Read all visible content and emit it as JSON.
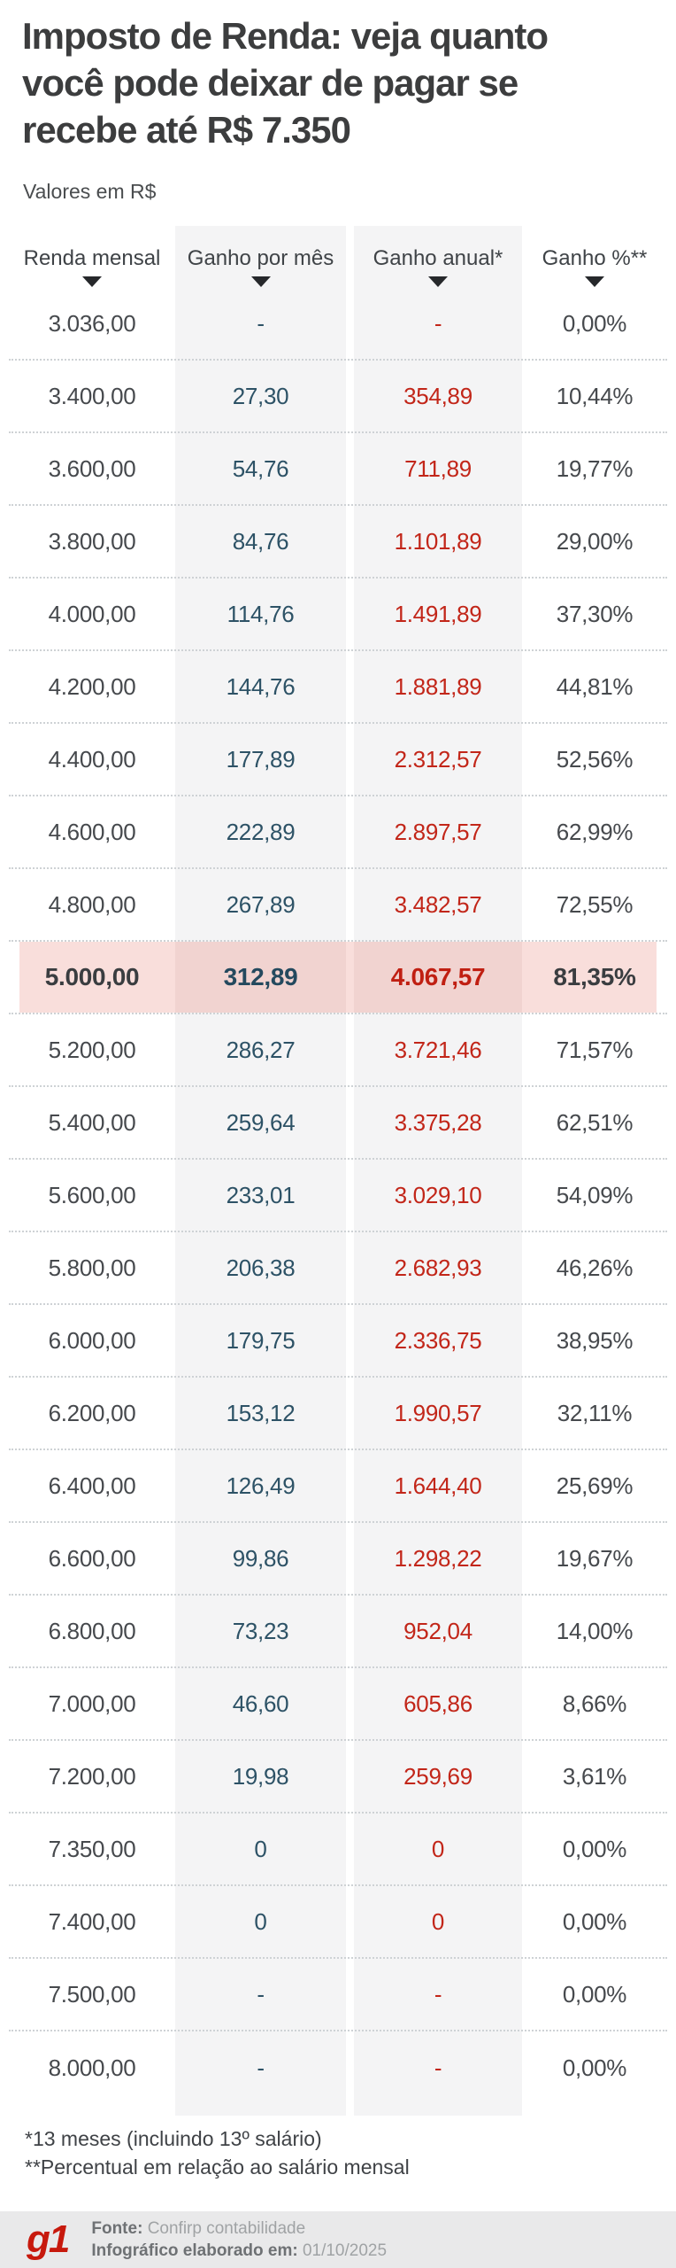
{
  "header": {
    "title_lines": [
      "Imposto de Renda: veja quanto",
      "você pode deixar de pagar se",
      "recebe até R$ 7.350"
    ],
    "subtitle": "Valores em R$"
  },
  "chart_data": {
    "type": "table",
    "title": "Imposto de Renda: veja quanto você pode deixar de pagar se recebe até R$ 7.350",
    "unit_note": "Valores em R$",
    "columns": [
      "Renda mensal",
      "Ganho por mês",
      "Ganho anual*",
      "Ganho %**"
    ],
    "rows": [
      [
        "3.036,00",
        "-",
        "-",
        "0,00%"
      ],
      [
        "3.400,00",
        "27,30",
        "354,89",
        "10,44%"
      ],
      [
        "3.600,00",
        "54,76",
        "711,89",
        "19,77%"
      ],
      [
        "3.800,00",
        "84,76",
        "1.101,89",
        "29,00%"
      ],
      [
        "4.000,00",
        "114,76",
        "1.491,89",
        "37,30%"
      ],
      [
        "4.200,00",
        "144,76",
        "1.881,89",
        "44,81%"
      ],
      [
        "4.400,00",
        "177,89",
        "2.312,57",
        "52,56%"
      ],
      [
        "4.600,00",
        "222,89",
        "2.897,57",
        "62,99%"
      ],
      [
        "4.800,00",
        "267,89",
        "3.482,57",
        "72,55%"
      ],
      [
        "5.000,00",
        "312,89",
        "4.067,57",
        "81,35%"
      ],
      [
        "5.200,00",
        "286,27",
        "3.721,46",
        "71,57%"
      ],
      [
        "5.400,00",
        "259,64",
        "3.375,28",
        "62,51%"
      ],
      [
        "5.600,00",
        "233,01",
        "3.029,10",
        "54,09%"
      ],
      [
        "5.800,00",
        "206,38",
        "2.682,93",
        "46,26%"
      ],
      [
        "6.000,00",
        "179,75",
        "2.336,75",
        "38,95%"
      ],
      [
        "6.200,00",
        "153,12",
        "1.990,57",
        "32,11%"
      ],
      [
        "6.400,00",
        "126,49",
        "1.644,40",
        "25,69%"
      ],
      [
        "6.600,00",
        "99,86",
        "1.298,22",
        "19,67%"
      ],
      [
        "6.800,00",
        "73,23",
        "952,04",
        "14,00%"
      ],
      [
        "7.000,00",
        "46,60",
        "605,86",
        "8,66%"
      ],
      [
        "7.200,00",
        "19,98",
        "259,69",
        "3,61%"
      ],
      [
        "7.350,00",
        "0",
        "0",
        "0,00%"
      ],
      [
        "7.400,00",
        "0",
        "0",
        "0,00%"
      ],
      [
        "7.500,00",
        "-",
        "-",
        "0,00%"
      ],
      [
        "8.000,00",
        "-",
        "-",
        "0,00%"
      ]
    ],
    "highlight_row_index": 9,
    "footnotes": [
      "*13 meses (incluindo 13º salário)",
      "**Percentual em relação ao salário mensal"
    ]
  },
  "footer": {
    "logo": "g1",
    "source_label": "Fonte:",
    "source_value": "Confirp contabilidade",
    "date_label": "Infográfico elaborado em:",
    "date_value": "01/10/2025"
  },
  "colors": {
    "monthly_gain_text": "#2d5266",
    "annual_gain_text": "#c22619",
    "highlight_row_bg": "#f9dedb",
    "column_strip_bg": "#f4f4f5",
    "logo_red": "#c7190d"
  }
}
